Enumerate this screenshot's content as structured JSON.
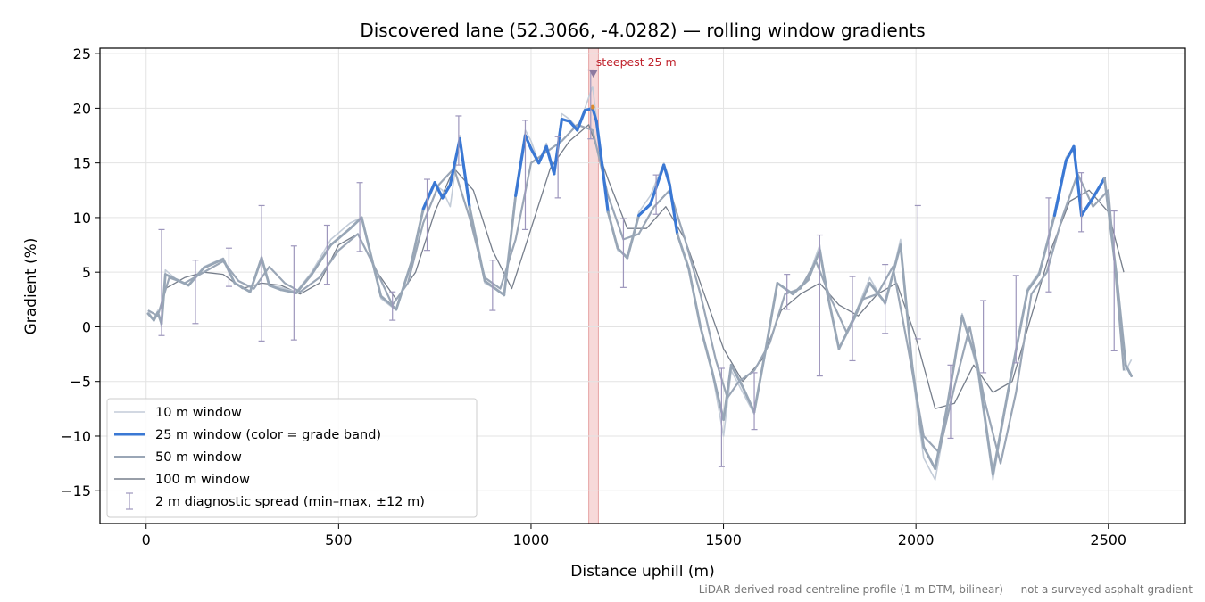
{
  "chart_data": {
    "type": "line",
    "title": "Discovered lane (52.3066, -4.0282) — rolling window gradients",
    "xlabel": "Distance uphill (m)",
    "ylabel": "Gradient (%)",
    "xlim": [
      -120,
      2700
    ],
    "ylim": [
      -18,
      25.5
    ],
    "xticks": [
      0,
      500,
      1000,
      1500,
      2000,
      2500
    ],
    "yticks": [
      -15,
      -10,
      -5,
      0,
      5,
      10,
      15,
      20,
      25
    ],
    "ytick_labels": [
      "−15",
      "−10",
      "−5",
      "0",
      "5",
      "10",
      "15",
      "20",
      "25"
    ],
    "grid": true,
    "legend_position": "lower-left",
    "footnote": "LiDAR-derived road-centreline profile (1 m DTM, bilinear) — not a surveyed asphalt gradient",
    "colors": {
      "w10": "#c3ccd8",
      "w25_band": "#3a78d4",
      "w25_low": "#98a6b6",
      "w50": "#9aa6b6",
      "w100": "#767e8b",
      "errbar": "#9d96bc",
      "highlight": "#f2c4c4",
      "annotation": "#c0222c",
      "marker": "#8d7aa0"
    },
    "annotation": {
      "text": "steepest 25 m",
      "x": 1162,
      "y": 23.2
    },
    "highlight_span": [
      1150,
      1175
    ],
    "series": [
      {
        "name": "10 m window",
        "x": [
          5,
          20,
          30,
          40,
          50,
          80,
          110,
          150,
          200,
          230,
          270,
          300,
          320,
          350,
          390,
          430,
          480,
          530,
          560,
          610,
          650,
          690,
          720,
          750,
          770,
          790,
          815,
          840,
          880,
          930,
          960,
          985,
          1000,
          1020,
          1040,
          1060,
          1080,
          1100,
          1120,
          1140,
          1160,
          1170,
          1185,
          1200,
          1225,
          1250,
          1280,
          1310,
          1345,
          1360,
          1380,
          1410,
          1440,
          1470,
          1500,
          1520,
          1550,
          1580,
          1610,
          1640,
          1680,
          1720,
          1750,
          1770,
          1800,
          1840,
          1880,
          1920,
          1960,
          1990,
          2020,
          2050,
          2080,
          2120,
          2160,
          2200,
          2240,
          2290,
          2320,
          2360,
          2390,
          2410,
          2430,
          2460,
          2490,
          2520,
          2545,
          2560
        ],
        "y": [
          1.5,
          0.5,
          1.5,
          0.0,
          5.2,
          4.3,
          3.8,
          5.5,
          6.3,
          4.0,
          3.2,
          6.5,
          3.8,
          3.6,
          3.2,
          5.0,
          8.0,
          9.5,
          10.0,
          2.6,
          1.5,
          6.0,
          10.5,
          13.0,
          12.5,
          11.0,
          17.5,
          10.5,
          4.0,
          3.0,
          12.5,
          18.0,
          17.0,
          15.0,
          16.8,
          14.2,
          19.5,
          19.0,
          18.2,
          20.0,
          22.0,
          19.0,
          15.0,
          10.5,
          7.0,
          6.5,
          10.5,
          12.0,
          15.0,
          13.5,
          8.5,
          5.5,
          0.0,
          -4.0,
          -10.0,
          -4.0,
          -6.0,
          -8.0,
          -2.0,
          4.0,
          3.0,
          4.5,
          7.5,
          3.0,
          -2.0,
          1.0,
          4.5,
          2.0,
          8.0,
          -4.0,
          -12.0,
          -14.0,
          -8.0,
          1.2,
          -4.0,
          -14.0,
          -6.0,
          3.5,
          5.0,
          10.5,
          15.5,
          16.5,
          10.0,
          12.0,
          13.5,
          5.0,
          -4.0,
          -3.0
        ]
      },
      {
        "name": "25 m window (color = grade band)",
        "x": [
          5,
          20,
          30,
          40,
          50,
          80,
          110,
          150,
          200,
          230,
          270,
          300,
          320,
          350,
          390,
          430,
          480,
          530,
          560,
          610,
          650,
          690,
          720,
          750,
          770,
          790,
          815,
          840,
          880,
          930,
          960,
          985,
          1000,
          1020,
          1040,
          1060,
          1080,
          1100,
          1120,
          1140,
          1160,
          1170,
          1185,
          1200,
          1225,
          1250,
          1280,
          1310,
          1345,
          1360,
          1380,
          1410,
          1440,
          1470,
          1500,
          1520,
          1550,
          1580,
          1610,
          1640,
          1680,
          1720,
          1750,
          1770,
          1800,
          1840,
          1880,
          1920,
          1960,
          1990,
          2020,
          2050,
          2080,
          2120,
          2160,
          2200,
          2240,
          2290,
          2320,
          2360,
          2390,
          2410,
          2430,
          2460,
          2490,
          2520,
          2545,
          2560
        ],
        "y": [
          1.2,
          0.6,
          1.3,
          0.3,
          4.8,
          4.3,
          3.8,
          5.4,
          6.2,
          4.0,
          3.2,
          6.3,
          3.8,
          3.4,
          3.1,
          4.8,
          7.5,
          9.0,
          10.0,
          2.8,
          1.6,
          6.0,
          10.8,
          13.2,
          11.8,
          13.0,
          17.2,
          11.0,
          4.2,
          2.9,
          12.0,
          17.5,
          16.3,
          15.0,
          16.5,
          14.0,
          19.0,
          18.8,
          18.0,
          19.8,
          20.0,
          18.8,
          14.8,
          10.5,
          7.2,
          6.3,
          10.2,
          11.2,
          14.8,
          13.0,
          8.5,
          5.3,
          0.0,
          -4.0,
          -8.5,
          -3.5,
          -5.5,
          -7.8,
          -2.0,
          4.0,
          3.0,
          4.3,
          7.0,
          3.0,
          -2.0,
          0.8,
          4.0,
          2.2,
          7.5,
          -3.5,
          -11.0,
          -13.0,
          -7.5,
          1.0,
          -3.5,
          -13.5,
          -5.8,
          3.3,
          4.8,
          10.2,
          15.2,
          16.5,
          10.2,
          11.8,
          13.6,
          5.0,
          -3.5,
          -4.5
        ]
      },
      {
        "name": "50 m window",
        "x": [
          5,
          30,
          60,
          100,
          150,
          200,
          240,
          280,
          320,
          360,
          400,
          450,
          500,
          550,
          600,
          640,
          680,
          720,
          760,
          800,
          840,
          880,
          920,
          960,
          1000,
          1040,
          1080,
          1120,
          1160,
          1200,
          1240,
          1280,
          1320,
          1360,
          1400,
          1440,
          1480,
          1510,
          1540,
          1580,
          1620,
          1660,
          1700,
          1740,
          1780,
          1820,
          1860,
          1900,
          1940,
          1980,
          2020,
          2060,
          2100,
          2140,
          2180,
          2220,
          2260,
          2300,
          2340,
          2380,
          2420,
          2460,
          2500,
          2540
        ],
        "y": [
          1.5,
          1.0,
          4.5,
          4.0,
          5.0,
          6.0,
          4.2,
          3.5,
          5.5,
          4.0,
          3.2,
          4.5,
          7.0,
          8.5,
          5.0,
          2.0,
          4.0,
          9.5,
          13.0,
          14.5,
          10.0,
          4.5,
          3.5,
          8.0,
          15.0,
          16.0,
          17.0,
          18.5,
          18.0,
          12.0,
          8.0,
          8.5,
          11.0,
          12.5,
          8.0,
          3.0,
          -3.0,
          -6.5,
          -5.0,
          -4.0,
          -1.5,
          3.0,
          3.5,
          6.0,
          2.5,
          -0.5,
          2.5,
          3.0,
          5.5,
          -2.0,
          -10.0,
          -11.5,
          -5.5,
          0.0,
          -7.0,
          -12.5,
          -6.0,
          3.0,
          5.0,
          10.0,
          14.0,
          11.0,
          12.5,
          -4.0
        ]
      },
      {
        "name": "100 m window",
        "x": [
          50,
          100,
          150,
          200,
          250,
          300,
          350,
          400,
          450,
          500,
          550,
          600,
          650,
          700,
          750,
          800,
          850,
          900,
          950,
          1000,
          1050,
          1100,
          1150,
          1200,
          1250,
          1300,
          1350,
          1400,
          1450,
          1500,
          1550,
          1600,
          1650,
          1700,
          1750,
          1800,
          1850,
          1900,
          1950,
          2000,
          2050,
          2100,
          2150,
          2200,
          2250,
          2300,
          2350,
          2400,
          2450,
          2500,
          2540
        ],
        "y": [
          3.5,
          4.5,
          5.0,
          4.8,
          3.5,
          4.0,
          3.8,
          3.0,
          4.0,
          7.5,
          8.5,
          5.0,
          2.5,
          5.0,
          10.5,
          14.5,
          12.5,
          7.0,
          3.5,
          9.0,
          14.5,
          17.0,
          18.5,
          13.5,
          9.0,
          9.0,
          11.0,
          8.0,
          3.0,
          -2.0,
          -5.0,
          -3.0,
          1.5,
          3.0,
          4.0,
          2.0,
          1.0,
          3.0,
          4.0,
          -1.0,
          -7.5,
          -7.0,
          -3.5,
          -6.0,
          -5.0,
          1.0,
          7.0,
          11.5,
          12.5,
          10.5,
          5.0
        ]
      },
      {
        "name": "2 m diagnostic spread (min–max, ±12 m)",
        "errorbars": [
          {
            "x": 40,
            "lo": -0.8,
            "hi": 8.9
          },
          {
            "x": 128,
            "lo": 0.3,
            "hi": 6.1
          },
          {
            "x": 215,
            "lo": 3.7,
            "hi": 7.2
          },
          {
            "x": 300,
            "lo": -1.3,
            "hi": 11.1
          },
          {
            "x": 384,
            "lo": -1.2,
            "hi": 7.4
          },
          {
            "x": 470,
            "lo": 3.9,
            "hi": 9.3
          },
          {
            "x": 555,
            "lo": 6.9,
            "hi": 13.2
          },
          {
            "x": 640,
            "lo": 0.6,
            "hi": 3.2
          },
          {
            "x": 730,
            "lo": 7.0,
            "hi": 13.5
          },
          {
            "x": 812,
            "lo": 14.8,
            "hi": 19.3
          },
          {
            "x": 900,
            "lo": 1.5,
            "hi": 6.1
          },
          {
            "x": 985,
            "lo": 8.9,
            "hi": 18.9
          },
          {
            "x": 1070,
            "lo": 11.8,
            "hi": 17.4
          },
          {
            "x": 1155,
            "lo": 17.2,
            "hi": 23.5
          },
          {
            "x": 1240,
            "lo": 3.6,
            "hi": 9.9
          },
          {
            "x": 1325,
            "lo": 10.3,
            "hi": 13.9
          },
          {
            "x": 1495,
            "lo": -12.8,
            "hi": -3.8
          },
          {
            "x": 1580,
            "lo": -9.4,
            "hi": -4.2
          },
          {
            "x": 1665,
            "lo": 1.6,
            "hi": 4.8
          },
          {
            "x": 1750,
            "lo": -4.5,
            "hi": 8.4
          },
          {
            "x": 1835,
            "lo": -3.1,
            "hi": 4.6
          },
          {
            "x": 1920,
            "lo": -0.6,
            "hi": 5.7
          },
          {
            "x": 2005,
            "lo": -1.1,
            "hi": 11.1
          },
          {
            "x": 2090,
            "lo": -10.2,
            "hi": -3.5
          },
          {
            "x": 2175,
            "lo": -4.2,
            "hi": 2.4
          },
          {
            "x": 2260,
            "lo": -3.3,
            "hi": 4.7
          },
          {
            "x": 2345,
            "lo": 3.2,
            "hi": 11.8
          },
          {
            "x": 2430,
            "lo": 8.7,
            "hi": 14.1
          },
          {
            "x": 2515,
            "lo": -2.2,
            "hi": 10.6
          }
        ]
      }
    ]
  }
}
